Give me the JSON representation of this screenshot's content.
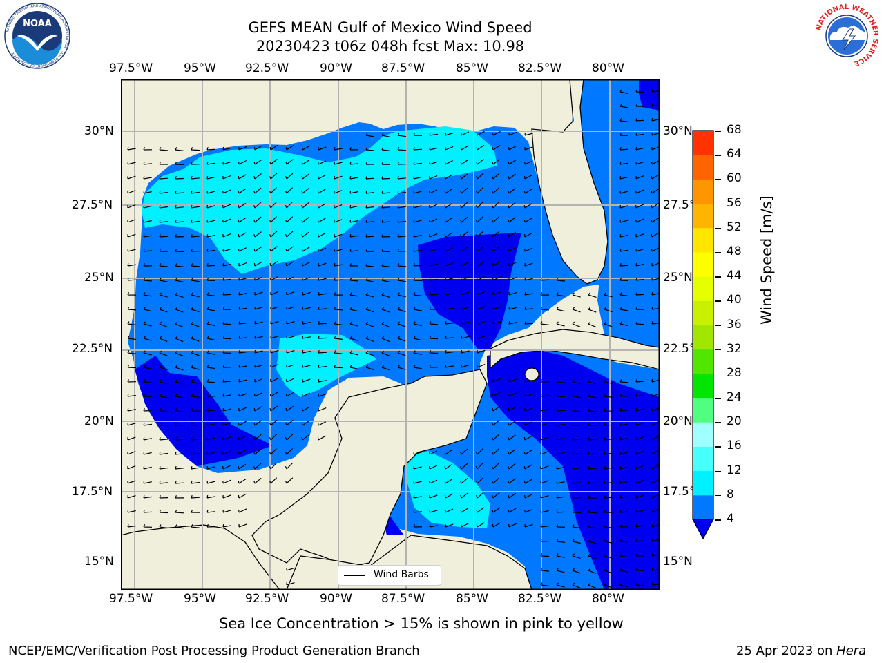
{
  "header": {
    "title_line1": "GEFS MEAN Gulf of Mexico Wind Speed",
    "title_line2": "20230423 t06z 048h fcst   Max: 10.98"
  },
  "logos": {
    "noaa_text": "NOAA",
    "noaa_ring": "NATIONAL OCEANIC AND ATMOSPHERIC ADMINISTRATION · U.S. DEPARTMENT OF COMMERCE",
    "nws_ring": "NATIONAL WEATHER SERVICE"
  },
  "map": {
    "lon_labels": [
      "97.5°W",
      "95°W",
      "92.5°W",
      "90°W",
      "87.5°W",
      "85°W",
      "82.5°W",
      "80°W"
    ],
    "lat_labels": [
      "30°N",
      "27.5°N",
      "25°N",
      "22.5°N",
      "20°N",
      "17.5°N",
      "15°N"
    ],
    "legend_label": "Wind Barbs",
    "colors": {
      "land": "#efefdc",
      "band_4_8": "#0078ff",
      "band_0_4": "#0000f0",
      "band_8_12": "#00f0ff",
      "barb": "#000000",
      "grid": "#b4b4b4"
    }
  },
  "colorbar": {
    "label": "Wind Speed [m/s]",
    "ticks": [
      "4",
      "8",
      "12",
      "16",
      "20",
      "24",
      "28",
      "32",
      "36",
      "40",
      "44",
      "48",
      "52",
      "56",
      "60",
      "64",
      "68"
    ],
    "colors": [
      "#0078ff",
      "#00f0ff",
      "#46ffff",
      "#a0ffff",
      "#50ff80",
      "#00e600",
      "#50e600",
      "#a0e600",
      "#c8f000",
      "#e6ff00",
      "#ffff00",
      "#ffe600",
      "#ffb400",
      "#ff9600",
      "#ff6400",
      "#ff3200",
      "#ff0000"
    ]
  },
  "footer": {
    "ice_note": "Sea Ice Concentration > 15% is shown in pink to yellow",
    "credit": "NCEP/EMC/Verification Post Processing Product Generation Branch",
    "date": "25 Apr 2023 on ",
    "machine": "Hera"
  }
}
